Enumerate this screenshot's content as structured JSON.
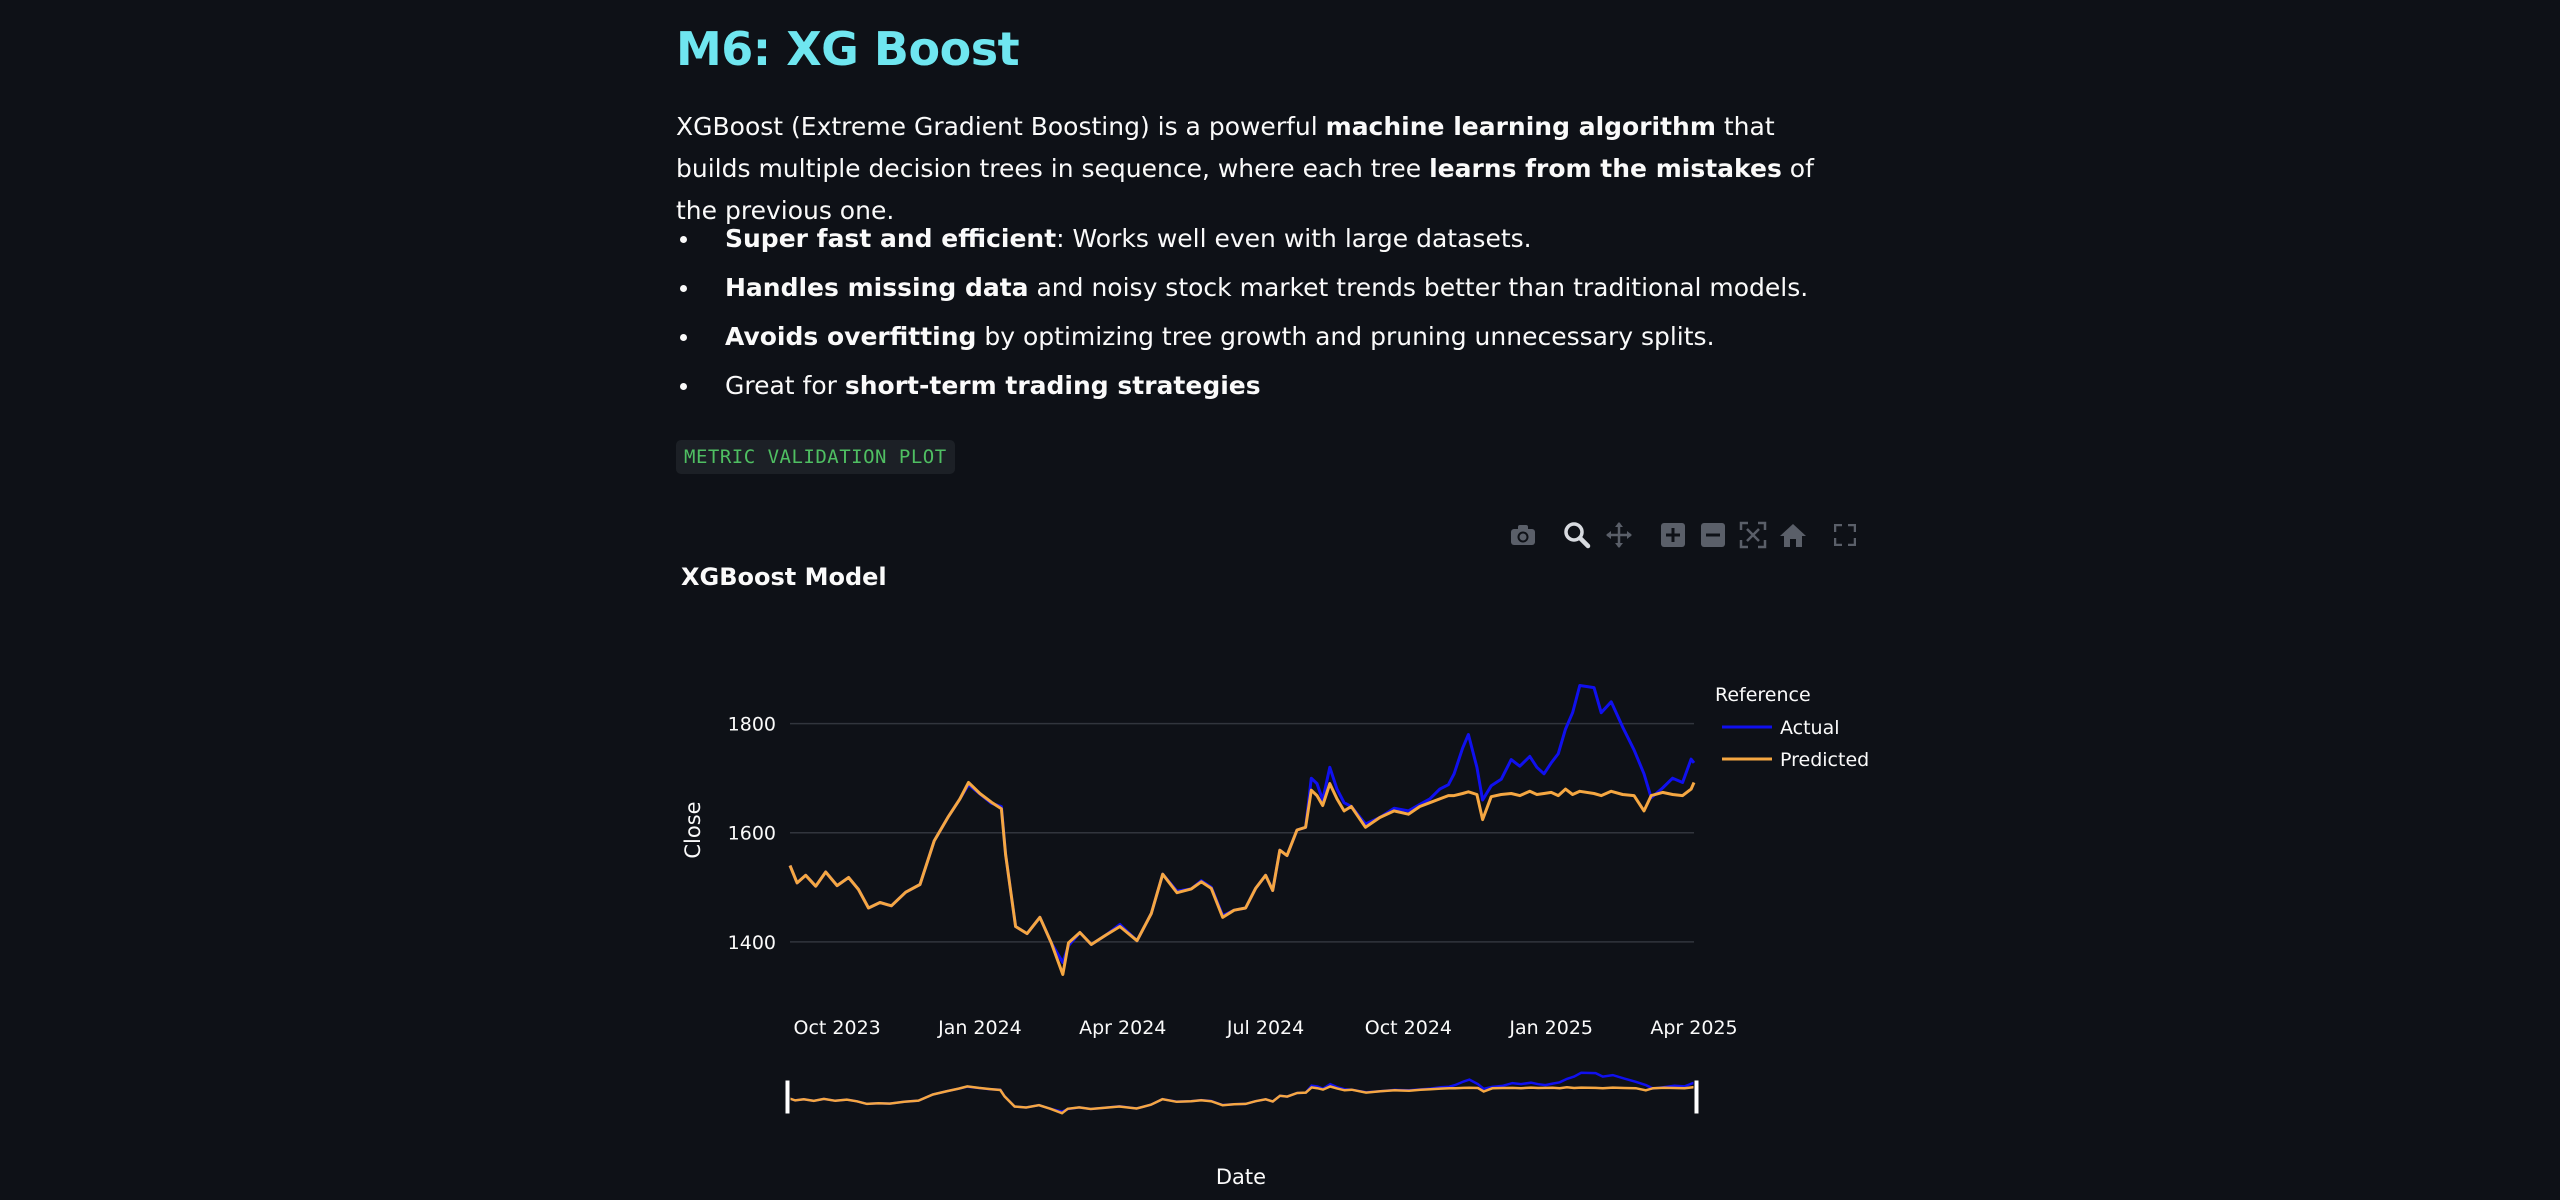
{
  "header": {
    "title": "M6: XG Boost"
  },
  "intro": {
    "p1": "XGBoost (Extreme Gradient Boosting) is a powerful ",
    "b1": "machine learning algorithm",
    "p2": " that builds multiple decision trees in sequence, where each tree ",
    "b2": "learns from the mistakes",
    "p3": " of the previous one."
  },
  "bullets": [
    {
      "bold": "Super fast and efficient",
      "text": ": Works well even with large datasets."
    },
    {
      "bold": "Handles missing data",
      "text": " and noisy stock market trends better than traditional models."
    },
    {
      "bold": "Avoids overfitting",
      "text": " by optimizing tree growth and pruning unnecessary splits."
    },
    {
      "pre": "Great for ",
      "bold": "short-term trading strategies"
    }
  ],
  "badge": "METRIC VALIDATION PLOT",
  "modebar": {
    "icons": [
      "camera-icon",
      "zoom-icon",
      "pan-icon",
      "zoom-in-icon",
      "zoom-out-icon",
      "autoscale-icon",
      "home-icon",
      "fullscreen-icon"
    ]
  },
  "chart_data": {
    "type": "line",
    "title": "XGBoost Model",
    "xlabel": "Date",
    "ylabel": "Close",
    "yticks": [
      1400,
      1600,
      1800
    ],
    "ylim": [
      1330,
      1880
    ],
    "xticks": [
      "Oct 2023",
      "Jan 2024",
      "Apr 2024",
      "Jul 2024",
      "Oct 2024",
      "Jan 2025",
      "Apr 2025"
    ],
    "xlim": [
      -0.33,
      6.0
    ],
    "legend": {
      "title": "Reference",
      "position": "top-right"
    },
    "series": [
      {
        "name": "Actual",
        "color": "#1010ee",
        "points": [
          [
            -0.33,
            1540
          ],
          [
            -0.28,
            1508
          ],
          [
            -0.22,
            1522
          ],
          [
            -0.15,
            1502
          ],
          [
            -0.08,
            1528
          ],
          [
            0.0,
            1503
          ],
          [
            0.08,
            1518
          ],
          [
            0.15,
            1496
          ],
          [
            0.22,
            1462
          ],
          [
            0.3,
            1472
          ],
          [
            0.38,
            1466
          ],
          [
            0.48,
            1491
          ],
          [
            0.58,
            1505
          ],
          [
            0.68,
            1585
          ],
          [
            0.78,
            1630
          ],
          [
            0.86,
            1662
          ],
          [
            0.92,
            1688
          ],
          [
            1.0,
            1671
          ],
          [
            1.08,
            1654
          ],
          [
            1.15,
            1648
          ],
          [
            1.18,
            1560
          ],
          [
            1.25,
            1428
          ],
          [
            1.33,
            1415
          ],
          [
            1.42,
            1445
          ],
          [
            1.5,
            1398
          ],
          [
            1.58,
            1362
          ],
          [
            1.62,
            1393
          ],
          [
            1.7,
            1417
          ],
          [
            1.78,
            1395
          ],
          [
            1.88,
            1412
          ],
          [
            1.98,
            1432
          ],
          [
            2.1,
            1402
          ],
          [
            2.2,
            1452
          ],
          [
            2.28,
            1524
          ],
          [
            2.38,
            1493
          ],
          [
            2.48,
            1497
          ],
          [
            2.55,
            1512
          ],
          [
            2.62,
            1500
          ],
          [
            2.7,
            1448
          ],
          [
            2.78,
            1458
          ],
          [
            2.86,
            1462
          ],
          [
            2.93,
            1498
          ],
          [
            3.0,
            1522
          ],
          [
            3.05,
            1494
          ],
          [
            3.1,
            1568
          ],
          [
            3.15,
            1558
          ],
          [
            3.22,
            1605
          ],
          [
            3.28,
            1610
          ],
          [
            3.32,
            1700
          ],
          [
            3.36,
            1690
          ],
          [
            3.4,
            1660
          ],
          [
            3.45,
            1720
          ],
          [
            3.5,
            1680
          ],
          [
            3.55,
            1655
          ],
          [
            3.6,
            1648
          ],
          [
            3.7,
            1616
          ],
          [
            3.8,
            1628
          ],
          [
            3.9,
            1645
          ],
          [
            4.0,
            1640
          ],
          [
            4.08,
            1652
          ],
          [
            4.15,
            1662
          ],
          [
            4.22,
            1680
          ],
          [
            4.28,
            1688
          ],
          [
            4.32,
            1708
          ],
          [
            4.38,
            1755
          ],
          [
            4.42,
            1780
          ],
          [
            4.48,
            1720
          ],
          [
            4.52,
            1660
          ],
          [
            4.58,
            1686
          ],
          [
            4.65,
            1698
          ],
          [
            4.72,
            1734
          ],
          [
            4.78,
            1722
          ],
          [
            4.85,
            1740
          ],
          [
            4.9,
            1720
          ],
          [
            4.95,
            1708
          ],
          [
            5.0,
            1728
          ],
          [
            5.05,
            1745
          ],
          [
            5.1,
            1790
          ],
          [
            5.15,
            1820
          ],
          [
            5.2,
            1870
          ],
          [
            5.3,
            1866
          ],
          [
            5.35,
            1820
          ],
          [
            5.42,
            1840
          ],
          [
            5.5,
            1794
          ],
          [
            5.58,
            1752
          ],
          [
            5.65,
            1708
          ],
          [
            5.7,
            1664
          ],
          [
            5.78,
            1682
          ],
          [
            5.85,
            1700
          ],
          [
            5.92,
            1692
          ],
          [
            5.98,
            1735
          ],
          [
            6.0,
            1728
          ]
        ]
      },
      {
        "name": "Predicted",
        "color": "#f5a742",
        "points": [
          [
            -0.33,
            1540
          ],
          [
            -0.28,
            1508
          ],
          [
            -0.22,
            1522
          ],
          [
            -0.15,
            1502
          ],
          [
            -0.08,
            1528
          ],
          [
            0.0,
            1503
          ],
          [
            0.08,
            1518
          ],
          [
            0.15,
            1496
          ],
          [
            0.22,
            1462
          ],
          [
            0.3,
            1472
          ],
          [
            0.38,
            1466
          ],
          [
            0.48,
            1491
          ],
          [
            0.58,
            1505
          ],
          [
            0.68,
            1585
          ],
          [
            0.78,
            1630
          ],
          [
            0.86,
            1662
          ],
          [
            0.92,
            1692
          ],
          [
            1.0,
            1672
          ],
          [
            1.08,
            1656
          ],
          [
            1.15,
            1644
          ],
          [
            1.18,
            1560
          ],
          [
            1.25,
            1428
          ],
          [
            1.33,
            1415
          ],
          [
            1.42,
            1445
          ],
          [
            1.5,
            1398
          ],
          [
            1.58,
            1340
          ],
          [
            1.62,
            1398
          ],
          [
            1.7,
            1417
          ],
          [
            1.78,
            1395
          ],
          [
            1.88,
            1412
          ],
          [
            1.98,
            1428
          ],
          [
            2.1,
            1402
          ],
          [
            2.2,
            1452
          ],
          [
            2.28,
            1524
          ],
          [
            2.38,
            1490
          ],
          [
            2.48,
            1497
          ],
          [
            2.55,
            1510
          ],
          [
            2.62,
            1498
          ],
          [
            2.7,
            1445
          ],
          [
            2.78,
            1458
          ],
          [
            2.86,
            1462
          ],
          [
            2.93,
            1498
          ],
          [
            3.0,
            1522
          ],
          [
            3.05,
            1494
          ],
          [
            3.1,
            1568
          ],
          [
            3.15,
            1558
          ],
          [
            3.22,
            1605
          ],
          [
            3.28,
            1610
          ],
          [
            3.32,
            1678
          ],
          [
            3.36,
            1668
          ],
          [
            3.4,
            1650
          ],
          [
            3.45,
            1690
          ],
          [
            3.5,
            1662
          ],
          [
            3.55,
            1640
          ],
          [
            3.6,
            1648
          ],
          [
            3.7,
            1610
          ],
          [
            3.8,
            1628
          ],
          [
            3.9,
            1640
          ],
          [
            4.0,
            1634
          ],
          [
            4.08,
            1648
          ],
          [
            4.15,
            1655
          ],
          [
            4.22,
            1662
          ],
          [
            4.28,
            1668
          ],
          [
            4.32,
            1668
          ],
          [
            4.38,
            1672
          ],
          [
            4.42,
            1675
          ],
          [
            4.48,
            1670
          ],
          [
            4.52,
            1624
          ],
          [
            4.58,
            1666
          ],
          [
            4.65,
            1670
          ],
          [
            4.72,
            1672
          ],
          [
            4.78,
            1668
          ],
          [
            4.85,
            1676
          ],
          [
            4.9,
            1670
          ],
          [
            4.95,
            1672
          ],
          [
            5.0,
            1674
          ],
          [
            5.05,
            1668
          ],
          [
            5.1,
            1680
          ],
          [
            5.15,
            1670
          ],
          [
            5.2,
            1676
          ],
          [
            5.3,
            1672
          ],
          [
            5.35,
            1668
          ],
          [
            5.42,
            1676
          ],
          [
            5.5,
            1670
          ],
          [
            5.58,
            1668
          ],
          [
            5.65,
            1640
          ],
          [
            5.7,
            1668
          ],
          [
            5.78,
            1674
          ],
          [
            5.85,
            1670
          ],
          [
            5.92,
            1668
          ],
          [
            5.98,
            1680
          ],
          [
            6.0,
            1692
          ]
        ]
      }
    ]
  }
}
